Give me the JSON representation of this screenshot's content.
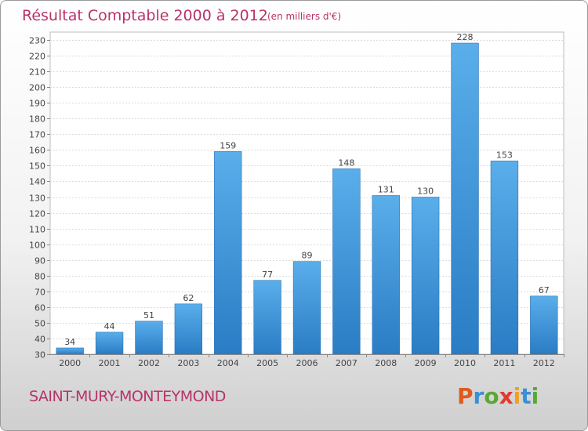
{
  "chart_data": {
    "type": "bar",
    "title": "Résultat Comptable 2000 à 2012",
    "subtitle": "(en milliers d'€)",
    "categories": [
      "2000",
      "2001",
      "2002",
      "2003",
      "2004",
      "2005",
      "2006",
      "2007",
      "2008",
      "2009",
      "2010",
      "2011",
      "2012"
    ],
    "values": [
      34,
      44,
      51,
      62,
      159,
      77,
      89,
      148,
      131,
      130,
      228,
      153,
      67
    ],
    "ylim": [
      30,
      230
    ],
    "ytick_step": 10,
    "xlabel": "",
    "ylabel": "",
    "grid": true,
    "bar_color": "#3d93d8"
  },
  "footer": {
    "commune": "SAINT-MURY-MONTEYMOND",
    "brand": [
      "P",
      "r",
      "o",
      "x",
      "i",
      "t",
      "i"
    ],
    "brand_colors": [
      "#e05a1c",
      "#3b8fd6",
      "#5aa832",
      "#e03a2e",
      "#f0a020",
      "#3b8fd6",
      "#5aa832"
    ]
  }
}
